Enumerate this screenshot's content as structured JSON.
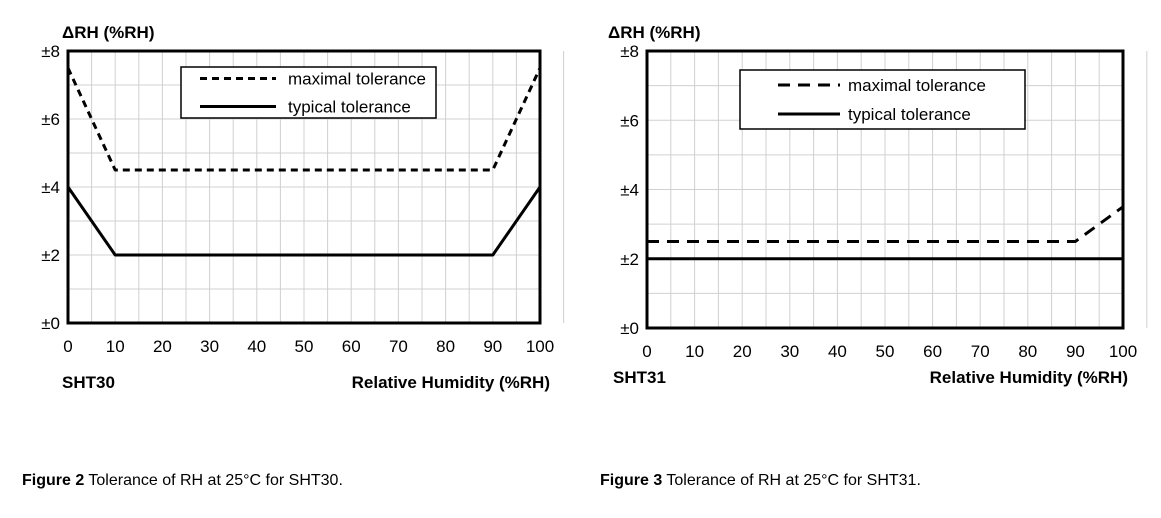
{
  "chart_data": [
    {
      "type": "line",
      "title": "ΔRH (%RH)",
      "subtitle": "SHT30",
      "xlabel": "Relative Humidity (%RH)",
      "ylabel": "ΔRH (%RH)",
      "xlim": [
        0,
        100
      ],
      "ylim": [
        0,
        8
      ],
      "x_ticks": [
        0,
        10,
        20,
        30,
        40,
        50,
        60,
        70,
        80,
        90,
        100
      ],
      "x_tick_labels": [
        "0",
        "10",
        "20",
        "30",
        "40",
        "50",
        "60",
        "70",
        "80",
        "90",
        "100"
      ],
      "y_ticks": [
        0,
        2,
        4,
        6,
        8
      ],
      "y_tick_labels": [
        "±0",
        "±2",
        "±4",
        "±6",
        "±8"
      ],
      "grid": true,
      "legend_position": "top-center",
      "series": [
        {
          "name": "maximal tolerance",
          "style": "dashed",
          "x": [
            0,
            10,
            90,
            100
          ],
          "y": [
            7.5,
            4.5,
            4.5,
            7.5
          ]
        },
        {
          "name": "typical tolerance",
          "style": "solid",
          "x": [
            0,
            10,
            90,
            100
          ],
          "y": [
            4,
            2,
            2,
            4
          ]
        }
      ]
    },
    {
      "type": "line",
      "title": "ΔRH (%RH)",
      "subtitle": "SHT31",
      "xlabel": "Relative Humidity (%RH)",
      "ylabel": "ΔRH (%RH)",
      "xlim": [
        0,
        100
      ],
      "ylim": [
        0,
        8
      ],
      "x_ticks": [
        0,
        10,
        20,
        30,
        40,
        50,
        60,
        70,
        80,
        90,
        100
      ],
      "x_tick_labels": [
        "0",
        "10",
        "20",
        "30",
        "40",
        "50",
        "60",
        "70",
        "80",
        "90",
        "100"
      ],
      "y_ticks": [
        0,
        2,
        4,
        6,
        8
      ],
      "y_tick_labels": [
        "±0",
        "±2",
        "±4",
        "±6",
        "±8"
      ],
      "grid": true,
      "legend_position": "top-center",
      "series": [
        {
          "name": "maximal tolerance",
          "style": "dashed",
          "x": [
            0,
            90,
            100
          ],
          "y": [
            2.5,
            2.5,
            3.5
          ]
        },
        {
          "name": "typical tolerance",
          "style": "solid",
          "x": [
            0,
            100
          ],
          "y": [
            2,
            2
          ]
        }
      ]
    }
  ],
  "captions": [
    {
      "label": "Figure 2",
      "text": " Tolerance of RH at 25°C for SHT30."
    },
    {
      "label": "Figure 3",
      "text": " Tolerance of RH at 25°C for SHT31."
    }
  ]
}
